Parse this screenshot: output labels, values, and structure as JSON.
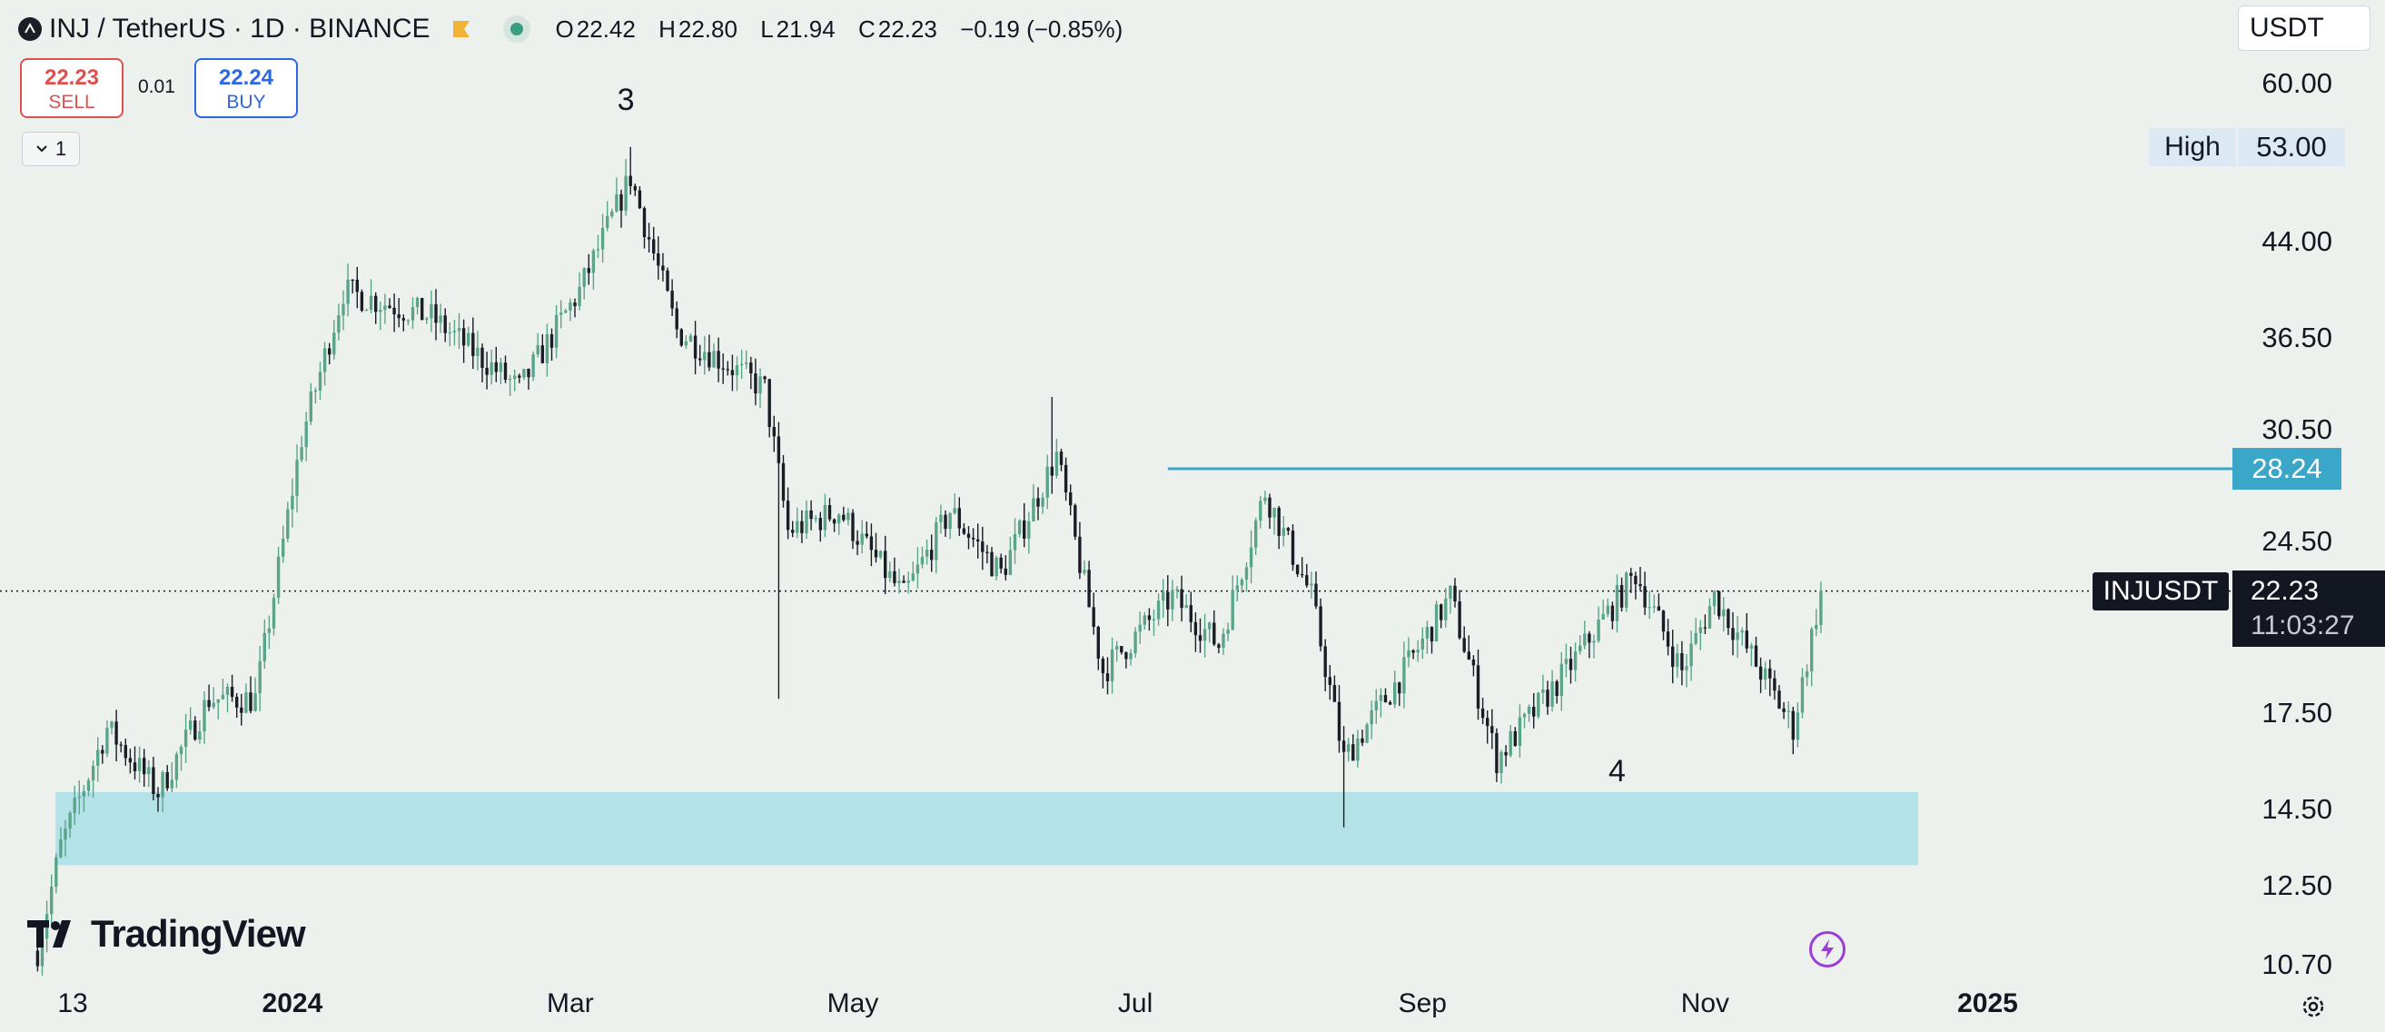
{
  "header": {
    "symbol_line": "INJ / TetherUS · 1D · BINANCE",
    "ohlc": [
      {
        "k": "O",
        "v": "22.42"
      },
      {
        "k": "H",
        "v": "22.80"
      },
      {
        "k": "L",
        "v": "21.94"
      },
      {
        "k": "C",
        "v": "22.23"
      },
      {
        "k": "",
        "v": "−0.19 (−0.85%)"
      }
    ]
  },
  "trade": {
    "sell_price": "22.23",
    "sell_label": "SELL",
    "spread": "0.01",
    "buy_price": "22.24",
    "buy_label": "BUY"
  },
  "indicators_toggle": "1",
  "currency": "USDT",
  "price_scale": [
    "60.00",
    "53.00",
    "44.00",
    "36.50",
    "30.50",
    "28.24",
    "24.50",
    "22.23",
    "17.50",
    "14.50",
    "12.50",
    "10.70"
  ],
  "high_label": "High",
  "high_value": "53.00",
  "level_line_value": "28.24",
  "symbol_badge": "INJUSDT",
  "last_price": "22.23",
  "countdown": "11:03:27",
  "time_axis": [
    {
      "label": "13",
      "bold": false
    },
    {
      "label": "2024",
      "bold": true
    },
    {
      "label": "Mar",
      "bold": false
    },
    {
      "label": "May",
      "bold": false
    },
    {
      "label": "Jul",
      "bold": false
    },
    {
      "label": "Sep",
      "bold": false
    },
    {
      "label": "Nov",
      "bold": false
    },
    {
      "label": "2025",
      "bold": true
    }
  ],
  "wave_labels": {
    "wave3": "3",
    "wave4": "4"
  },
  "branding": "TradingView",
  "colors": {
    "background": "#edf1ed",
    "up_candle": "#5aa58a",
    "down_candle": "#1a1d26",
    "support_zone": "#b3e2e8",
    "level_line": "#3aa6c8",
    "sell": "#e0504f",
    "buy": "#2e67e0"
  },
  "chart_data": {
    "type": "candlestick",
    "symbol": "INJUSDT",
    "interval": "1D",
    "scale": "log",
    "y_range": [
      10.5,
      62
    ],
    "x_range": [
      "2023-11-05",
      "2025-01-10"
    ],
    "path_keypoints": [
      {
        "date": "2023-11-07",
        "price": 11.0
      },
      {
        "date": "2023-11-12",
        "price": 13.5
      },
      {
        "date": "2023-11-22",
        "price": 17.0
      },
      {
        "date": "2023-12-03",
        "price": 15.0
      },
      {
        "date": "2023-12-14",
        "price": 18.0
      },
      {
        "date": "2023-12-24",
        "price": 18.0
      },
      {
        "date": "2024-01-03",
        "price": 30.0
      },
      {
        "date": "2024-01-12",
        "price": 40.0
      },
      {
        "date": "2024-01-31",
        "price": 38.0
      },
      {
        "date": "2024-02-19",
        "price": 33.0
      },
      {
        "date": "2024-03-03",
        "price": 40.0
      },
      {
        "date": "2024-03-14",
        "price": 50.0
      },
      {
        "date": "2024-03-24",
        "price": 37.0
      },
      {
        "date": "2024-04-12",
        "price": 33.0
      },
      {
        "date": "2024-04-17",
        "price": 25.0
      },
      {
        "date": "2024-04-28",
        "price": 26.0
      },
      {
        "date": "2024-05-12",
        "price": 22.0
      },
      {
        "date": "2024-05-22",
        "price": 26.0
      },
      {
        "date": "2024-06-02",
        "price": 23.0
      },
      {
        "date": "2024-06-14",
        "price": 29.0
      },
      {
        "date": "2024-06-24",
        "price": 19.0
      },
      {
        "date": "2024-07-09",
        "price": 22.0
      },
      {
        "date": "2024-07-19",
        "price": 20.0
      },
      {
        "date": "2024-07-29",
        "price": 27.0
      },
      {
        "date": "2024-08-08",
        "price": 22.0
      },
      {
        "date": "2024-08-15",
        "price": 16.0
      },
      {
        "date": "2024-08-28",
        "price": 19.0
      },
      {
        "date": "2024-09-07",
        "price": 22.0
      },
      {
        "date": "2024-09-17",
        "price": 16.0
      },
      {
        "date": "2024-10-02",
        "price": 19.0
      },
      {
        "date": "2024-10-17",
        "price": 23.0
      },
      {
        "date": "2024-10-27",
        "price": 19.0
      },
      {
        "date": "2024-11-03",
        "price": 22.0
      },
      {
        "date": "2024-11-13",
        "price": 19.0
      },
      {
        "date": "2024-11-20",
        "price": 17.0
      },
      {
        "date": "2024-11-26",
        "price": 22.23
      }
    ],
    "extreme_wicks": [
      {
        "date": "2024-03-14",
        "high": 53.0
      },
      {
        "date": "2024-04-15",
        "low": 18.0
      },
      {
        "date": "2024-06-13",
        "high": 32.5
      },
      {
        "date": "2024-08-15",
        "low": 14.0
      }
    ],
    "horizontal_level": {
      "price": 28.24,
      "from_date": "2024-07-08"
    },
    "support_zone": {
      "low": 13.0,
      "high": 15.0,
      "from_date": "2023-11-14",
      "to_date": "2024-12-17"
    },
    "current_price": 22.23,
    "wave_labels": [
      {
        "text": "3",
        "date": "2024-03-13",
        "price": 58.0
      },
      {
        "text": "4",
        "date": "2024-10-13",
        "price": 15.6
      }
    ]
  }
}
